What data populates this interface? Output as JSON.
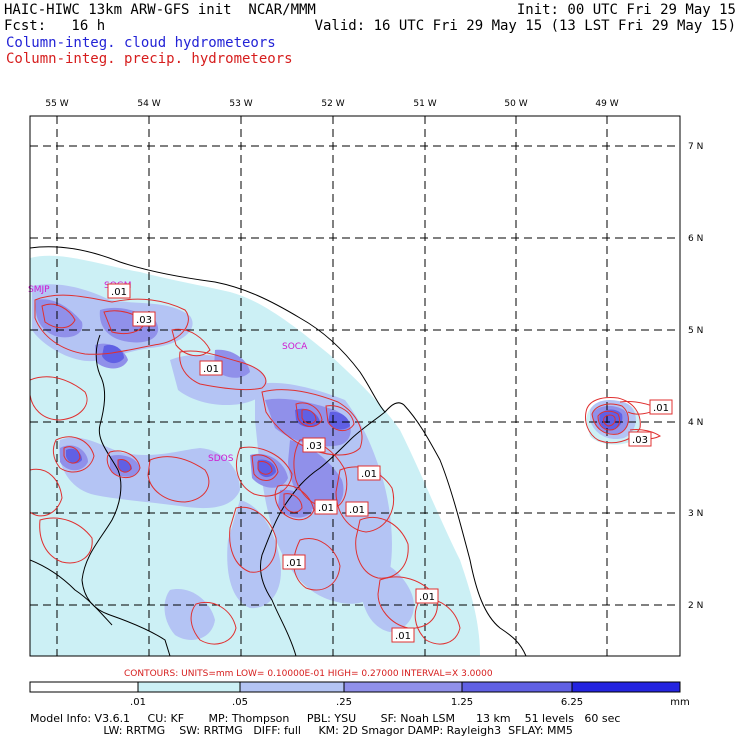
{
  "header": {
    "model_title": "HAIC-HIWC 13km ARW-GFS init  NCAR/MMM",
    "forecast": "Fcst:   16 h",
    "init": "Init: 00 UTC Fri 29 May 15",
    "valid": "Valid: 16 UTC Fri 29 May 15 (13 LST Fri 29 May 15)",
    "field1": "Column-integ. cloud hydrometeors",
    "field2": "Column-integ. precip. hydrometeors"
  },
  "colors": {
    "field1": "#2323d6",
    "field2": "#d61d1d",
    "magenta": "#d019d0",
    "contour_line": "#e03030",
    "fill_levels": [
      "#ffffff",
      "#ccf0f5",
      "#b4c4f4",
      "#9090ea",
      "#6060e4",
      "#2424e0"
    ]
  },
  "map": {
    "lon_labels": [
      "55 W",
      "54 W",
      "53 W",
      "52 W",
      "51 W",
      "50 W",
      "49 W"
    ],
    "lat_labels": [
      "7 N",
      "6 N",
      "5 N",
      "4 N",
      "3 N",
      "2 N"
    ],
    "stations": [
      "SMJP",
      "SOGM",
      "SOCA",
      "SDOS"
    ],
    "contour_labels": [
      ".01",
      ".03",
      ".01",
      ".03",
      ".01",
      ".01",
      ".01",
      ".01",
      ".01",
      ".01",
      ".01",
      ".03"
    ]
  },
  "contour_info": "CONTOURS:  UNITS=mm  LOW= 0.10000E-01  HIGH= 0.27000      INTERVAL=X  3.0000",
  "colorbar": {
    "tick_labels": [
      ".01",
      ".05",
      ".25",
      "1.25",
      "6.25"
    ],
    "units": "mm"
  },
  "model_info": {
    "line1": "Model Info: V3.6.1     CU: KF       MP: Thompson     PBL: YSU       SF: Noah LSM      13 km    51 levels   60 sec",
    "line2": "                     LW: RRTMG    SW: RRTMG   DIFF: full     KM: 2D Smagor DAMP: Rayleigh3  SFLAY: MM5"
  }
}
